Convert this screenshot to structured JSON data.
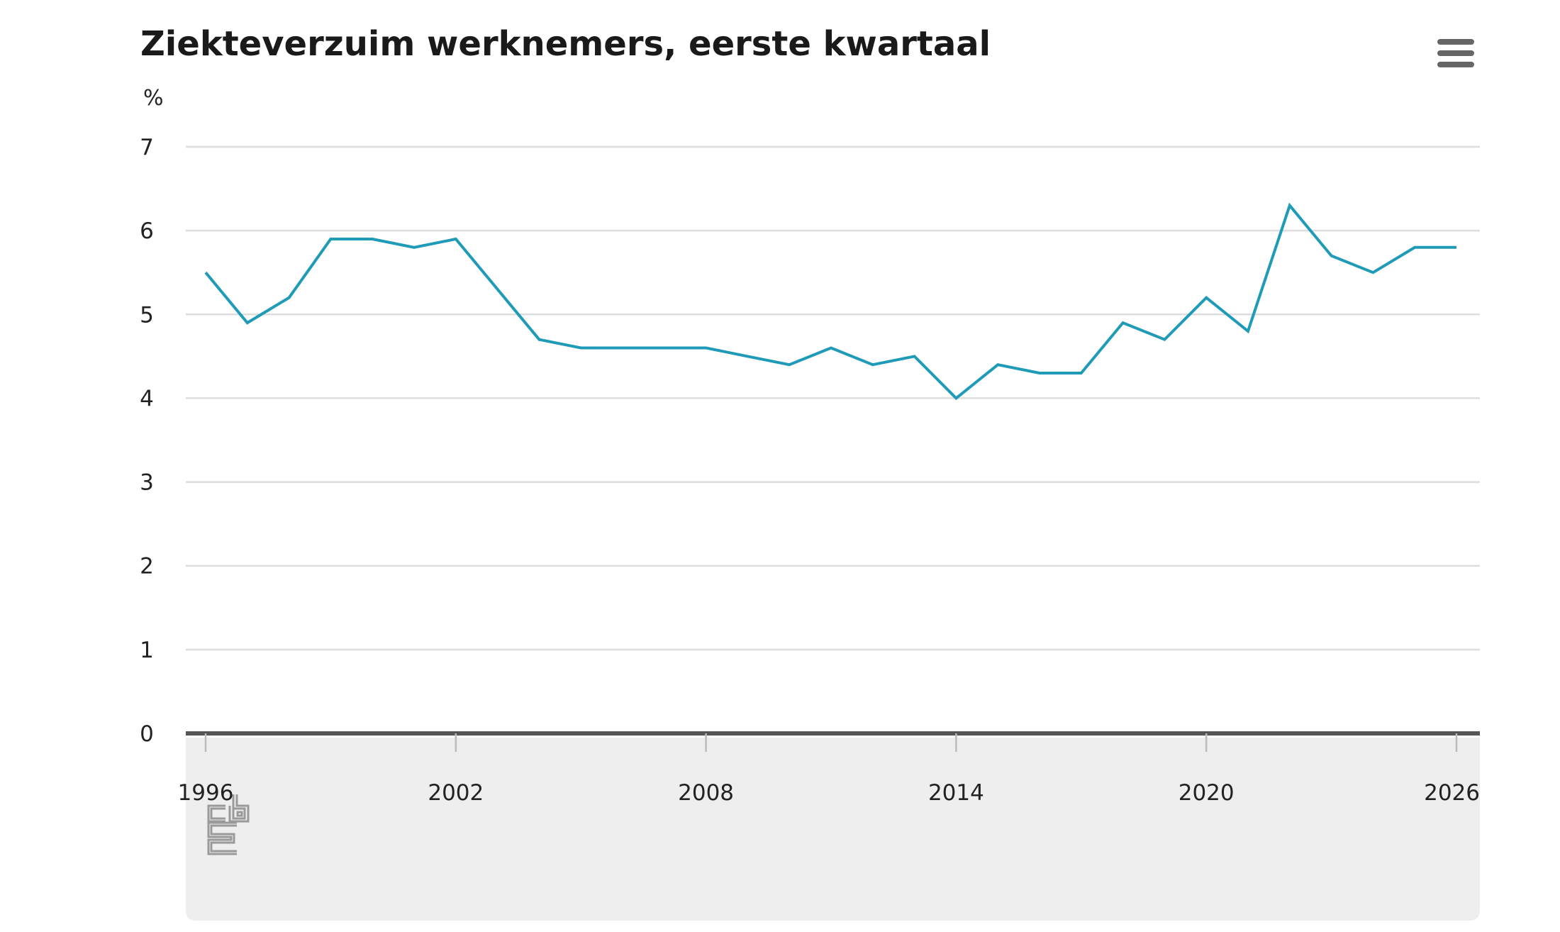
{
  "chart_data": {
    "type": "line",
    "title": "Ziekteverzuim werknemers, eerste kwartaal",
    "ylabel": "%",
    "xlabel": "",
    "ylim": [
      0,
      7
    ],
    "xlim": [
      1996,
      2026
    ],
    "yticks": [
      "0",
      "1",
      "2",
      "3",
      "4",
      "5",
      "6",
      "7"
    ],
    "xticks": [
      "1996",
      "2002",
      "2008",
      "2014",
      "2020",
      "2026"
    ],
    "grid": true,
    "legend": "none",
    "x": [
      1996,
      1997,
      1998,
      1999,
      2000,
      2001,
      2002,
      2003,
      2004,
      2005,
      2006,
      2007,
      2008,
      2009,
      2010,
      2011,
      2012,
      2013,
      2014,
      2015,
      2016,
      2017,
      2018,
      2019,
      2020,
      2021,
      2022,
      2023,
      2024,
      2025,
      2026
    ],
    "series": [
      {
        "color": "#1f9bb8",
        "values": [
          5.5,
          4.9,
          5.2,
          5.9,
          5.9,
          5.8,
          5.9,
          5.3,
          4.7,
          4.6,
          4.6,
          4.6,
          4.6,
          4.5,
          4.4,
          4.6,
          4.4,
          4.5,
          4.0,
          4.4,
          4.3,
          4.3,
          4.9,
          4.7,
          5.2,
          4.8,
          6.3,
          5.7,
          5.5,
          5.8,
          5.8
        ]
      }
    ]
  },
  "colors": {
    "line": "#1f9bb8",
    "grid": "#dddddd",
    "axis": "#555555",
    "footer_bg": "#eeeeee",
    "logo": "#9a9a9a",
    "menu_icon": "#666666"
  },
  "icons": {
    "menu": "hamburger-menu-icon",
    "logo": "cbs-logo"
  }
}
